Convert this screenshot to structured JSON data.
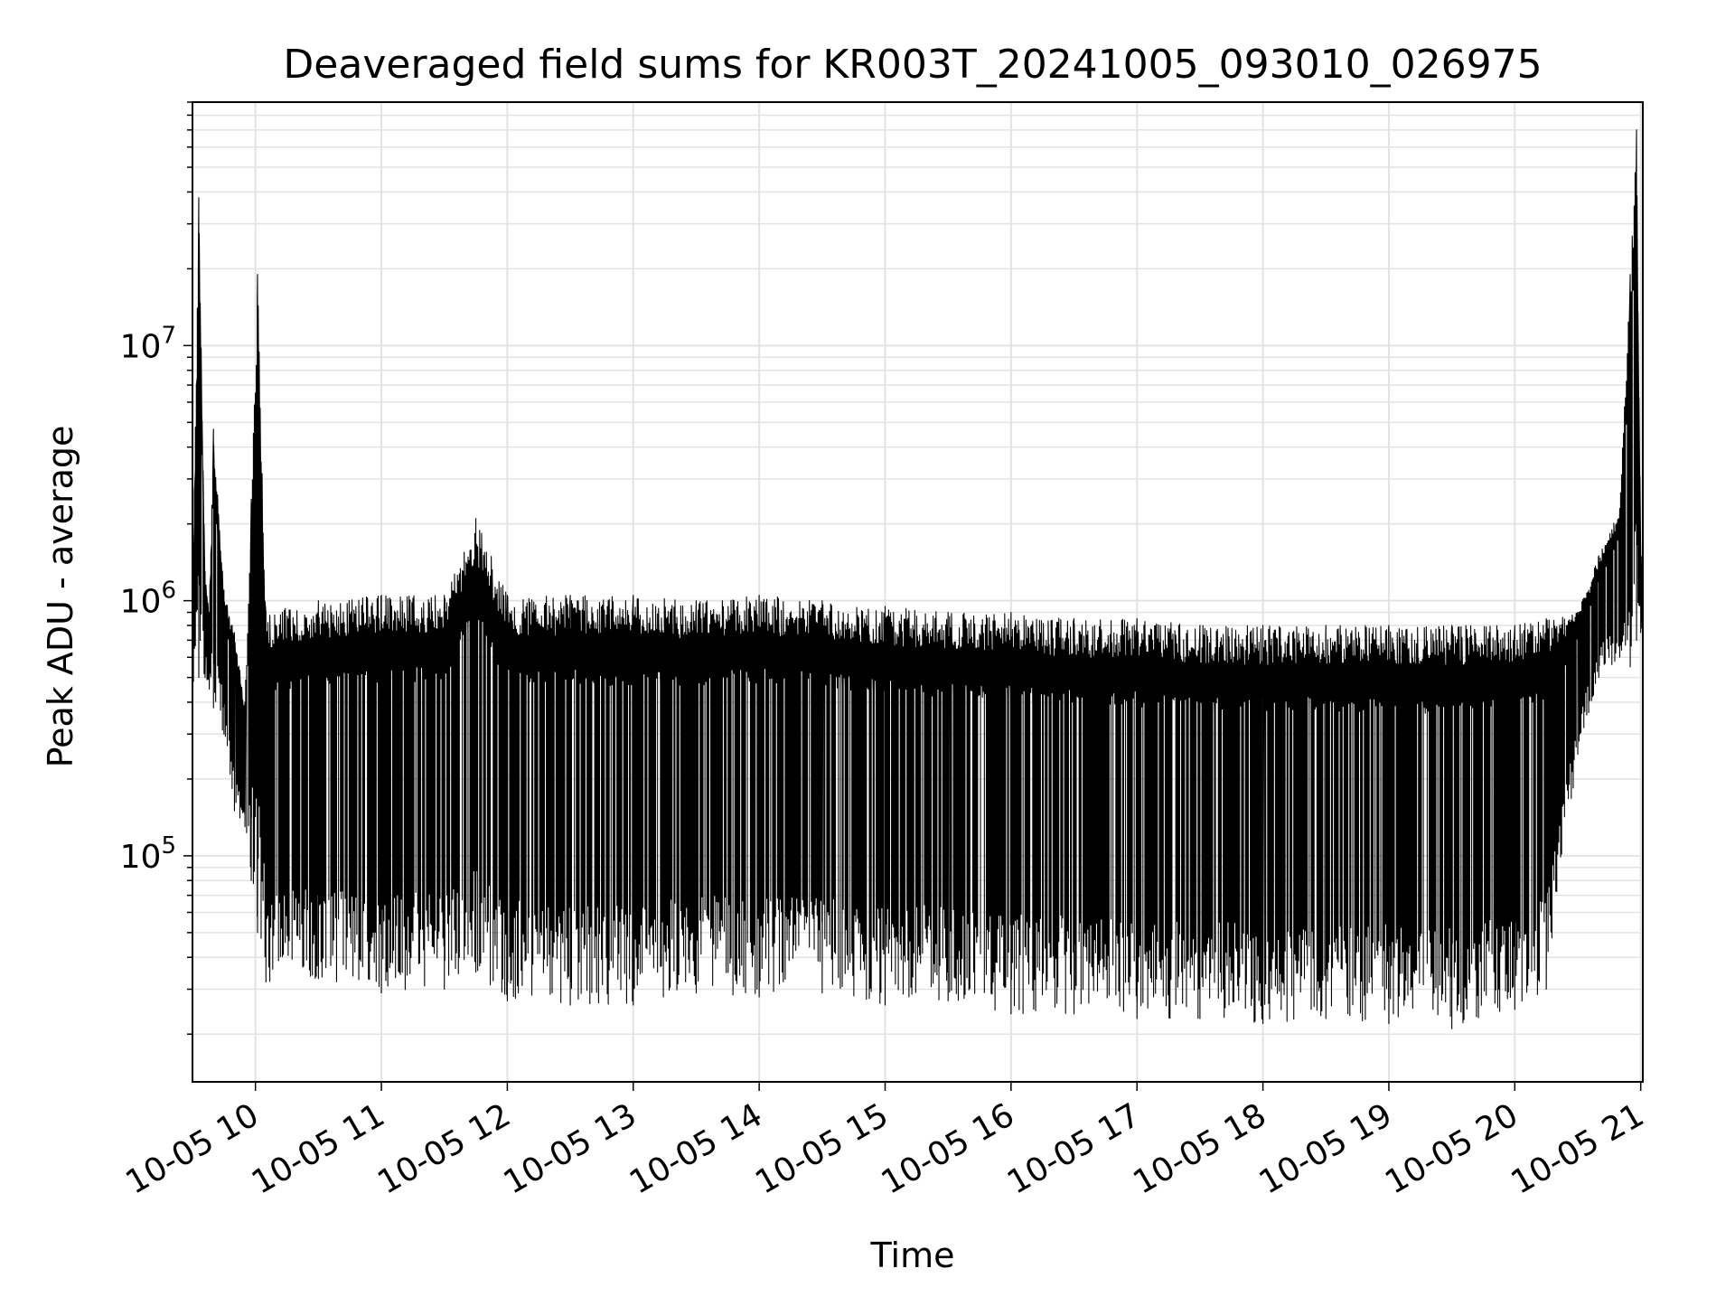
{
  "chart_data": {
    "type": "line",
    "title": "Deaveraged field sums for KR003T_20241005_093010_026975",
    "xlabel": "Time",
    "ylabel": "Peak ADU - average",
    "yscale": "log",
    "grid": true,
    "xlim": [
      "10-05 09:30",
      "10-05 21:01"
    ],
    "ylim": [
      13000,
      90000000
    ],
    "x_ticks": [
      "10-05 10",
      "10-05 11",
      "10-05 12",
      "10-05 13",
      "10-05 14",
      "10-05 15",
      "10-05 16",
      "10-05 17",
      "10-05 18",
      "10-05 19",
      "10-05 20",
      "10-05 21"
    ],
    "y_ticks": [
      {
        "value": 100000,
        "base": "10",
        "exp": "5"
      },
      {
        "value": 1000000,
        "base": "10",
        "exp": "6"
      },
      {
        "value": 10000000,
        "base": "10",
        "exp": "7"
      }
    ],
    "line_color": "#000000",
    "series": [
      {
        "x": [
          "10-05 09:30",
          "10-05 09:33",
          "10-05 09:36",
          "10-05 09:38",
          "10-05 09:40",
          "10-05 09:45",
          "10-05 09:50",
          "10-05 09:55",
          "10-05 09:58",
          "10-05 10:01",
          "10-05 10:05",
          "10-05 10:30",
          "10-05 11:00",
          "10-05 11:30",
          "10-05 11:45",
          "10-05 12:00",
          "10-05 12:30",
          "10-05 13:00",
          "10-05 13:30",
          "10-05 14:00",
          "10-05 14:30",
          "10-05 15:00",
          "10-05 15:30",
          "10-05 16:00",
          "10-05 16:30",
          "10-05 17:00",
          "10-05 17:30",
          "10-05 18:00",
          "10-05 18:30",
          "10-05 19:00",
          "10-05 19:30",
          "10-05 20:00",
          "10-05 20:15",
          "10-05 20:30",
          "10-05 20:40",
          "10-05 20:50",
          "10-05 20:55",
          "10-05 20:58",
          "10-05 21:00"
        ],
        "upper": [
          900000,
          38000000,
          1300000,
          900000,
          4700000,
          1100000,
          750000,
          400000,
          2500000,
          19000000,
          900000,
          1000000,
          1050000,
          1050000,
          2100000,
          1050000,
          1050000,
          1050000,
          1000000,
          1050000,
          1000000,
          950000,
          900000,
          900000,
          850000,
          850000,
          800000,
          800000,
          800000,
          800000,
          800000,
          800000,
          850000,
          900000,
          1500000,
          2300000,
          19000000,
          70000000,
          1500000
        ],
        "lower": [
          450000,
          500000,
          500000,
          450000,
          380000,
          300000,
          150000,
          130000,
          80000,
          50000,
          32000,
          33000,
          29000,
          30000,
          35000,
          27000,
          26000,
          26000,
          29000,
          28000,
          29000,
          26000,
          27000,
          24000,
          24000,
          23000,
          23000,
          22000,
          23000,
          22000,
          21000,
          25000,
          30000,
          250000,
          500000,
          600000,
          550000,
          700000,
          750000
        ]
      }
    ]
  }
}
